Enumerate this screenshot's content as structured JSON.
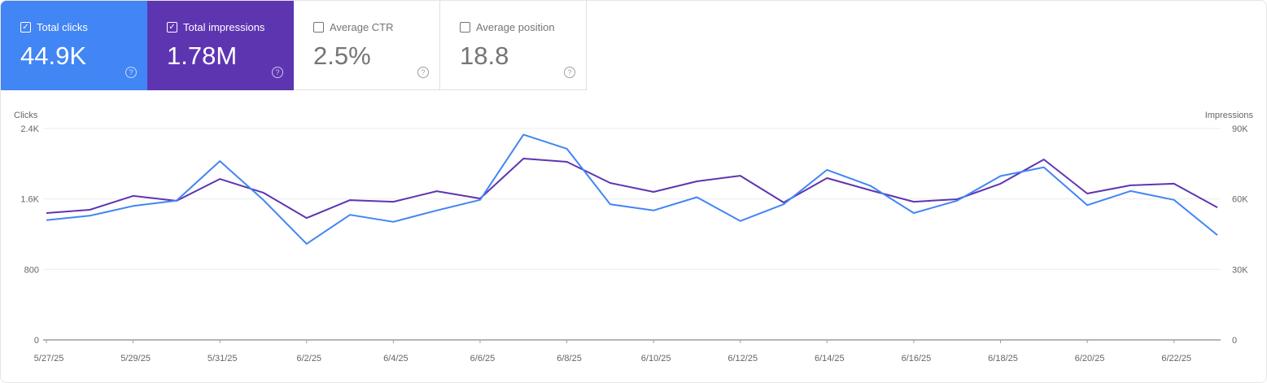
{
  "metrics": [
    {
      "label": "Total clicks",
      "value": "44.9K",
      "checked": true,
      "color": "#4285f4"
    },
    {
      "label": "Total impressions",
      "value": "1.78M",
      "checked": true,
      "color": "#5e35b1"
    },
    {
      "label": "Average CTR",
      "value": "2.5%",
      "checked": false
    },
    {
      "label": "Average position",
      "value": "18.8",
      "checked": false
    }
  ],
  "help_icon": "?",
  "check_icon": "✓",
  "chart_data": {
    "type": "line",
    "ylabel": "Clicks",
    "y2label": "Impressions",
    "ylim": [
      0,
      2400
    ],
    "y2lim": [
      0,
      90000
    ],
    "yticks": [
      "0",
      "800",
      "1.6K",
      "2.4K"
    ],
    "y2ticks": [
      "0",
      "30K",
      "60K",
      "90K"
    ],
    "xticklabels": [
      "5/27/25",
      "5/29/25",
      "5/31/25",
      "6/2/25",
      "6/4/25",
      "6/6/25",
      "6/8/25",
      "6/10/25",
      "6/12/25",
      "6/14/25",
      "6/16/25",
      "6/18/25",
      "6/20/25",
      "6/22/25"
    ],
    "x": [
      "5/27/25",
      "5/28/25",
      "5/29/25",
      "5/30/25",
      "5/31/25",
      "6/1/25",
      "6/2/25",
      "6/3/25",
      "6/4/25",
      "6/5/25",
      "6/6/25",
      "6/7/25",
      "6/8/25",
      "6/9/25",
      "6/10/25",
      "6/11/25",
      "6/12/25",
      "6/13/25",
      "6/14/25",
      "6/15/25",
      "6/16/25",
      "6/17/25",
      "6/18/25",
      "6/19/25",
      "6/20/25",
      "6/21/25",
      "6/22/25",
      "6/23/25"
    ],
    "grid": true,
    "series": [
      {
        "name": "Clicks",
        "axis": "left",
        "color": "#4285f4",
        "values": [
          1360,
          1410,
          1520,
          1580,
          2030,
          1590,
          1090,
          1420,
          1340,
          1470,
          1590,
          2330,
          2170,
          1540,
          1470,
          1620,
          1350,
          1540,
          1930,
          1750,
          1440,
          1580,
          1860,
          1960,
          1530,
          1690,
          1590,
          1190
        ]
      },
      {
        "name": "Impressions",
        "axis": "right",
        "color": "#5e35b1",
        "values": [
          54000,
          55400,
          61300,
          59200,
          68500,
          62700,
          51900,
          59500,
          58800,
          63300,
          60200,
          77200,
          75800,
          66800,
          63000,
          67500,
          69900,
          58500,
          68900,
          63700,
          58800,
          59900,
          66500,
          76800,
          62300,
          65800,
          66500,
          56400
        ]
      }
    ]
  }
}
